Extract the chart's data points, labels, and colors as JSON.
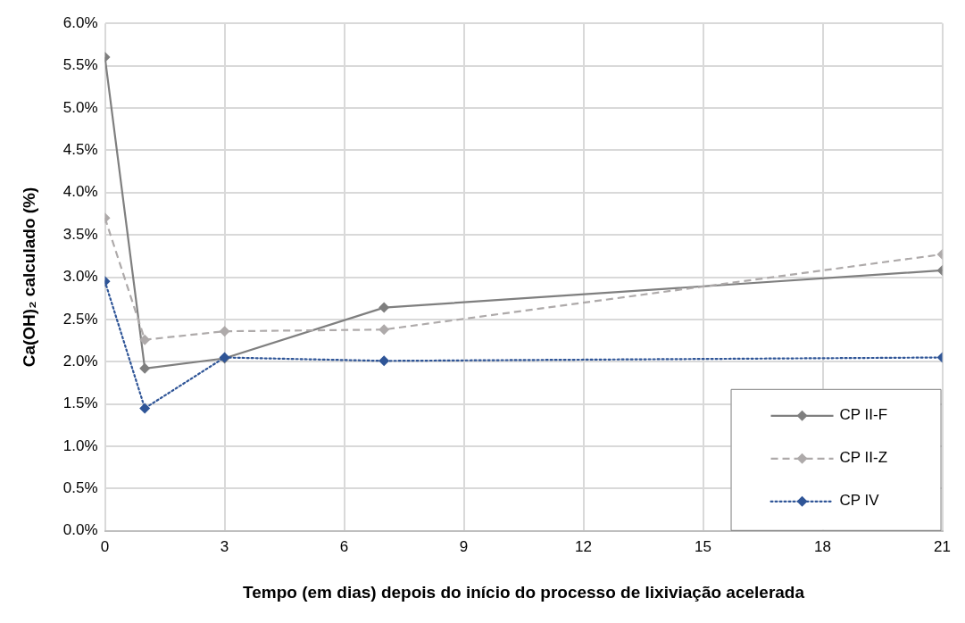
{
  "chart_data": {
    "type": "line",
    "xlabel": "Tempo (em dias) depois do início do processo de lixiviação acelerada",
    "ylabel": "Ca(OH)₂ calculado (%)",
    "x": [
      0,
      1,
      3,
      7,
      21
    ],
    "series": [
      {
        "name": "CP II-F",
        "color": "#7f7f7f",
        "line_style": "solid",
        "values": [
          5.6,
          1.92,
          2.04,
          2.64,
          3.08
        ]
      },
      {
        "name": "CP II-Z",
        "color": "#aeaaaa",
        "line_style": "dashed",
        "values": [
          3.7,
          2.26,
          2.36,
          2.38,
          3.27
        ]
      },
      {
        "name": "CP IV",
        "color": "#2f5597",
        "line_style": "dotted",
        "values": [
          2.95,
          1.45,
          2.05,
          2.01,
          2.05
        ]
      }
    ],
    "xlim": [
      0,
      21
    ],
    "xticks": [
      0,
      3,
      6,
      9,
      12,
      15,
      18,
      21
    ],
    "ylim": [
      0,
      6
    ],
    "yticks": [
      {
        "value": 0,
        "label": "0.0%"
      },
      {
        "value": 0.5,
        "label": "0.5%"
      },
      {
        "value": 1,
        "label": "1.0%"
      },
      {
        "value": 1.5,
        "label": "1.5%"
      },
      {
        "value": 2,
        "label": "2.0%"
      },
      {
        "value": 2.5,
        "label": "2.5%"
      },
      {
        "value": 3,
        "label": "3.0%"
      },
      {
        "value": 3.5,
        "label": "3.5%"
      },
      {
        "value": 4,
        "label": "4.0%"
      },
      {
        "value": 4.5,
        "label": "4.5%"
      },
      {
        "value": 5,
        "label": "5.0%"
      },
      {
        "value": 5.5,
        "label": "5.5%"
      },
      {
        "value": 6,
        "label": "6.0%"
      }
    ],
    "grid": true,
    "legend": "bottom right",
    "marker": "diamond"
  }
}
